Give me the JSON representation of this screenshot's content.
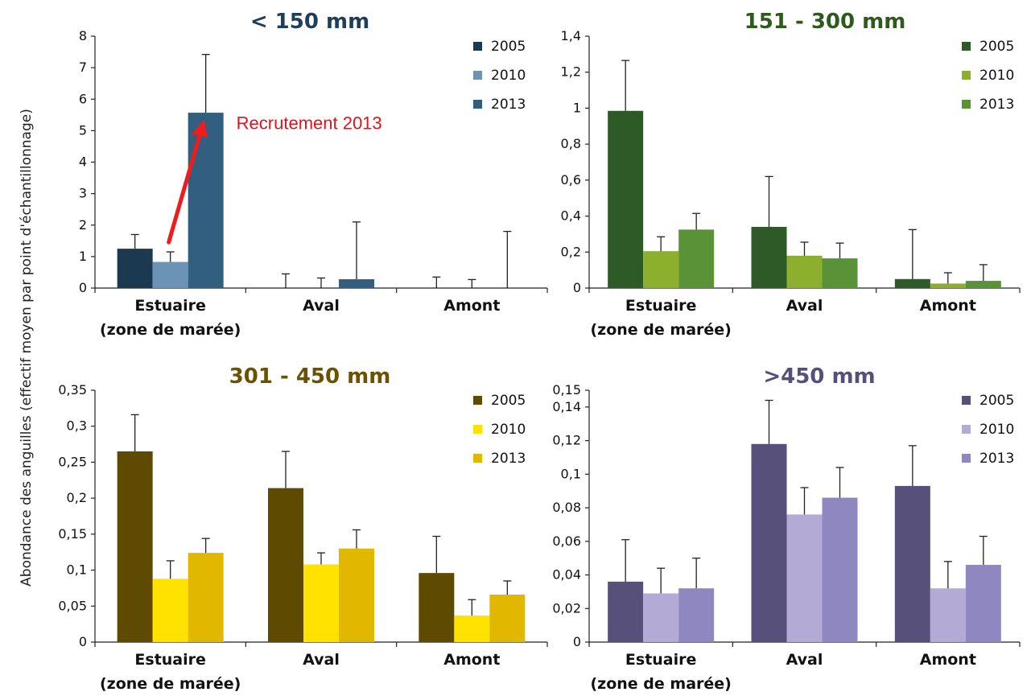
{
  "shared_ylabel": "Abondance des anguilles (effectif moyen par point d'échantillonnage)",
  "chart_data": [
    {
      "type": "bar",
      "title": "< 150 mm",
      "title_color": "#1e3e5a",
      "categories": [
        "Estuaire|(zone de marée)",
        "Aval",
        "Amont"
      ],
      "ylim": [
        0,
        8
      ],
      "yticks": [
        0,
        1,
        2,
        3,
        4,
        5,
        6,
        7,
        8
      ],
      "ytick_labels": [
        "0",
        "1",
        "2",
        "3",
        "4",
        "5",
        "6",
        "7",
        "8"
      ],
      "legend_position": "top-right",
      "series": [
        {
          "name": "2005",
          "color": "#1b3a52",
          "values": [
            1.25,
            0.0,
            0.0
          ],
          "errors": [
            0.45,
            0.45,
            0.35
          ]
        },
        {
          "name": "2010",
          "color": "#6b93b5",
          "values": [
            0.83,
            0.0,
            0.0
          ],
          "errors": [
            0.32,
            0.32,
            0.27
          ]
        },
        {
          "name": "2013",
          "color": "#325f80",
          "values": [
            5.57,
            0.28,
            0.0
          ],
          "errors": [
            1.85,
            1.82,
            1.8
          ]
        }
      ],
      "annotation": "Recrutement 2013"
    },
    {
      "type": "bar",
      "title": "151 - 300 mm",
      "title_color": "#2e5a1e",
      "categories": [
        "Estuaire|(zone de marée)",
        "Aval",
        "Amont"
      ],
      "ylim": [
        0,
        1.4
      ],
      "yticks": [
        0,
        0.2,
        0.4,
        0.6,
        0.8,
        1,
        1.2,
        1.4
      ],
      "ytick_labels": [
        "0",
        "0,2",
        "0,4",
        "0,6",
        "0,8",
        "1",
        "1,2",
        "1,4"
      ],
      "legend_position": "top-right",
      "series": [
        {
          "name": "2005",
          "color": "#2d5a27",
          "values": [
            0.985,
            0.34,
            0.05
          ],
          "errors": [
            0.28,
            0.28,
            0.275
          ]
        },
        {
          "name": "2010",
          "color": "#8caf2d",
          "values": [
            0.205,
            0.18,
            0.025
          ],
          "errors": [
            0.08,
            0.075,
            0.06
          ]
        },
        {
          "name": "2013",
          "color": "#5a9237",
          "values": [
            0.325,
            0.165,
            0.04
          ],
          "errors": [
            0.09,
            0.085,
            0.09
          ]
        }
      ]
    },
    {
      "type": "bar",
      "title": "301 - 450 mm",
      "title_color": "#6b5200",
      "categories": [
        "Estuaire|(zone de marée)",
        "Aval",
        "Amont"
      ],
      "ylim": [
        0,
        0.35
      ],
      "yticks": [
        0,
        0.05,
        0.1,
        0.15,
        0.2,
        0.25,
        0.3,
        0.35
      ],
      "ytick_labels": [
        "0",
        "0,05",
        "0,1",
        "0,15",
        "0,2",
        "0,25",
        "0,3",
        "0,35"
      ],
      "legend_position": "top-right",
      "series": [
        {
          "name": "2005",
          "color": "#5e4a00",
          "values": [
            0.265,
            0.214,
            0.096
          ],
          "errors": [
            0.051,
            0.051,
            0.051
          ]
        },
        {
          "name": "2010",
          "color": "#ffe200",
          "values": [
            0.088,
            0.108,
            0.037
          ],
          "errors": [
            0.025,
            0.016,
            0.022
          ]
        },
        {
          "name": "2013",
          "color": "#e2b700",
          "values": [
            0.124,
            0.13,
            0.066
          ],
          "errors": [
            0.02,
            0.026,
            0.019
          ]
        }
      ]
    },
    {
      "type": "bar",
      "title": ">450 mm",
      "title_color": "#54507a",
      "categories": [
        "Estuaire|(zone de marée)",
        "Aval",
        "Amont"
      ],
      "ylim": [
        0,
        0.15
      ],
      "yticks": [
        0,
        0.02,
        0.04,
        0.06,
        0.08,
        0.1,
        0.12,
        0.14,
        0.15
      ],
      "ytick_labels": [
        "0",
        "0,02",
        "0,04",
        "0,06",
        "0,08",
        "0,1",
        "0,12",
        "0,14",
        "0,15"
      ],
      "legend_position": "top-right",
      "series": [
        {
          "name": "2005",
          "color": "#57507a",
          "values": [
            0.036,
            0.118,
            0.093
          ],
          "errors": [
            0.025,
            0.026,
            0.024
          ]
        },
        {
          "name": "2010",
          "color": "#b3aad6",
          "values": [
            0.029,
            0.076,
            0.032
          ],
          "errors": [
            0.015,
            0.016,
            0.016
          ]
        },
        {
          "name": "2013",
          "color": "#8f87c0",
          "values": [
            0.032,
            0.086,
            0.046
          ],
          "errors": [
            0.018,
            0.018,
            0.017
          ]
        }
      ]
    }
  ]
}
